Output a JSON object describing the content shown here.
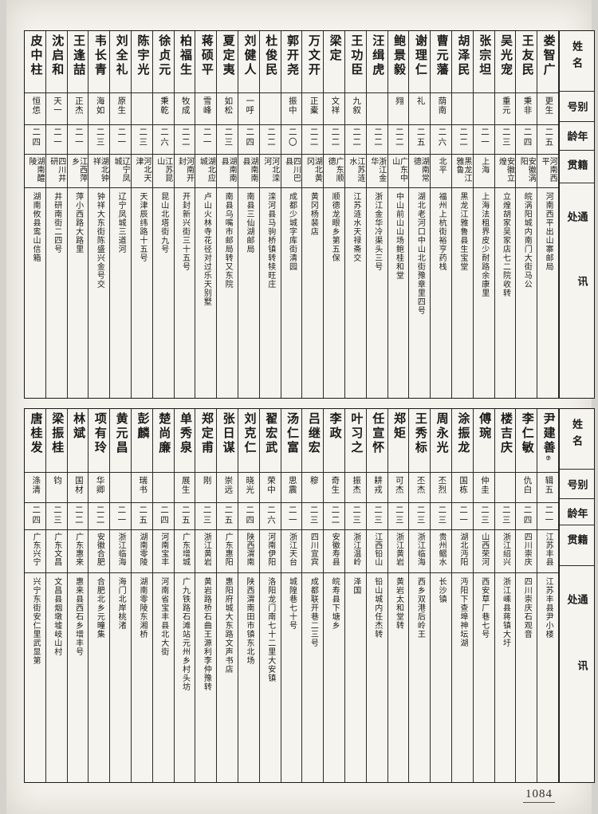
{
  "page": {
    "number": "1084"
  },
  "headers": {
    "name": "姓名",
    "alias": "别号",
    "age": "年龄",
    "native": "籍贯",
    "address": "通讯处"
  },
  "table_top": {
    "entries": [
      {
        "name": "娄智广",
        "alias": "更生",
        "age": "二五",
        "native": "河南西平",
        "address": "河南西平出山寨邮局"
      },
      {
        "name": "王友民",
        "alias": "秉非",
        "age": "二四",
        "native": "安徽涡阳",
        "address": "皖涡阳城内南门大街马公"
      },
      {
        "name": "吴光宠",
        "alias": "重元",
        "age": "二三",
        "native": "安徽立煌",
        "address": "立煌胡家吴家店七二院收转"
      },
      {
        "name": "张宗坦",
        "alias": "",
        "age": "二一",
        "native": "上海",
        "address": "上海法租界皮少耐路余康里"
      },
      {
        "name": "胡泽民",
        "alias": "",
        "age": "二二",
        "native": "黑龙江雅鲁",
        "address": "黑龙江雅鲁县生宝堂"
      },
      {
        "name": "曹元藩",
        "alias": "荫南",
        "age": "二六",
        "native": "北平",
        "address": "福州上杭街裕亨药栈"
      },
      {
        "name": "谢理仁",
        "alias": "礼",
        "age": "二五",
        "native": "湖南常德",
        "address": "湖北老河口中山北街豫章里四号"
      },
      {
        "name": "鲍景毅",
        "alias": "翙",
        "age": "二二",
        "native": "广东中山",
        "address": "中山前山山场鲍桂和堂"
      },
      {
        "name": "汪缉虎",
        "alias": "",
        "age": "二二",
        "native": "浙江金华",
        "address": "浙江金华冷渠头三号"
      },
      {
        "name": "王功臣",
        "alias": "九叙",
        "age": "二二",
        "native": "江苏涟水",
        "address": "江苏涟水天禄斋交"
      },
      {
        "name": "梁定",
        "alias": "文祥",
        "age": "二二",
        "native": "广东顺德",
        "address": "顺德龙眼乡第五保"
      },
      {
        "name": "万文开",
        "alias": "正橐",
        "age": "二二",
        "native": "湖北黄冈",
        "address": "黄冈杨裴店"
      },
      {
        "name": "郭开尧",
        "alias": "振中",
        "age": "二〇",
        "native": "四川巴县",
        "address": "成都少城字库街清园"
      },
      {
        "name": "杜俊民",
        "alias": "",
        "age": "二二",
        "native": "河北滦河",
        "address": "滦河县马驹桥镇转犊旺庄"
      },
      {
        "name": "刘健人",
        "alias": "一呼",
        "age": "二四",
        "native": "湖南南县",
        "address": "南县三仙湖邮局"
      },
      {
        "name": "夏定夷",
        "alias": "如松",
        "age": "二三",
        "native": "湖南南县",
        "address": "南县乌嘴市邮局转又东院"
      },
      {
        "name": "蒋硕平",
        "alias": "雪峰",
        "age": "二一",
        "native": "湖北应城",
        "address": "卢山火林寺花径对过乐天别墅"
      },
      {
        "name": "柏福生",
        "alias": "牧成",
        "age": "二二",
        "native": "河南开封",
        "address": "开封新兴街三十五号"
      },
      {
        "name": "徐贞元",
        "alias": "秉乾",
        "age": "二六",
        "native": "江苏昆山",
        "address": "昆山北塔街九号"
      },
      {
        "name": "陈宇光",
        "alias": "",
        "age": "二三",
        "native": "河北天津",
        "address": "天津辰纬路十五号"
      },
      {
        "name": "刘全礼",
        "alias": "原生",
        "age": "二一",
        "native": "辽宁凤城",
        "address": "辽宁凤城三道河"
      },
      {
        "name": "韦长青",
        "alias": "海如",
        "age": "二三",
        "native": "湖北钟祥",
        "address": "钟祥大东街陈盛兴金号交"
      },
      {
        "name": "王逢喆",
        "alias": "正杰",
        "age": "二一",
        "native": "江西萍乡",
        "address": "萍小西路大路里"
      },
      {
        "name": "沈启和",
        "alias": "天一",
        "age": "二一",
        "native": "四川井研",
        "address": "井研南街二四号"
      },
      {
        "name": "皮中柱",
        "alias": "恒怹",
        "age": "二四",
        "native": "湖南醴陵",
        "address": "湖南攸县鸾山信箱"
      }
    ]
  },
  "table_bottom": {
    "entries": [
      {
        "name": "尹建善",
        "note": "⑦",
        "alias": "辑五",
        "age": "二一",
        "native": "江苏丰县",
        "address": "江苏丰县尹小楼"
      },
      {
        "name": "李仁敏",
        "alias": "仇白",
        "age": "二四",
        "native": "四川崇庆",
        "address": "四川崇庆石观音"
      },
      {
        "name": "楼吉庆",
        "alias": "",
        "age": "二三",
        "native": "浙江绍兴",
        "address": "浙江嵊县蒋镇大圩"
      },
      {
        "name": "傅琬",
        "alias": "仲圭",
        "age": "二三",
        "native": "山西荣河",
        "address": "西安草厂巷七号"
      },
      {
        "name": "涂振龙",
        "alias": "国栋",
        "age": "二一",
        "native": "湖北沔阳",
        "address": "沔阳下查埠神坛湖"
      },
      {
        "name": "周永光",
        "alias": "丕烈",
        "age": "二三",
        "native": "贵州鳛水",
        "address": "长沙镇"
      },
      {
        "name": "王秀标",
        "alias": "丕杰",
        "age": "二三",
        "native": "浙江临海",
        "address": "西乡双港后岭王"
      },
      {
        "name": "郑矩",
        "alias": "可杰",
        "age": "二三",
        "native": "浙江黄岩",
        "address": "黄岩太和堂转"
      },
      {
        "name": "任宣怀",
        "alias": "耕戎",
        "age": "二三",
        "native": "江西铅山",
        "address": "铅山城内任杰转"
      },
      {
        "name": "叶习之",
        "alias": "振杰",
        "age": "二三",
        "native": "浙江温岭",
        "address": "泽国"
      },
      {
        "name": "李政",
        "alias": "奇生",
        "age": "二二",
        "native": "安徽寿县",
        "address": "皖寿县下塘乡"
      },
      {
        "name": "吕继宏",
        "alias": "穆",
        "age": "二三",
        "native": "四川宜宾",
        "address": "成都联开巷二三号"
      },
      {
        "name": "汤仁富",
        "alias": "思震",
        "age": "二一",
        "native": "浙江天台",
        "address": "城隍巷七十号"
      },
      {
        "name": "翟宏武",
        "alias": "荣中",
        "age": "二六",
        "native": "河南伊阳",
        "address": "洛阳龙门南七十二里大安镇"
      },
      {
        "name": "刘克仁",
        "alias": "晓光",
        "age": "二四",
        "native": "陕西渭南",
        "address": "陕西渭南田市镇东北场"
      },
      {
        "name": "张日谋",
        "alias": "崇远",
        "age": "二五",
        "native": "广东惠阳",
        "address": "惠阳府城大东路文声书店"
      },
      {
        "name": "郑定甫",
        "alias": "刚",
        "age": "二三",
        "native": "浙江黄岩",
        "address": "黄岩路桥石曲王源利李仲豫转"
      },
      {
        "name": "单秀泉",
        "alias": "展生",
        "age": "二五",
        "native": "广东增城",
        "address": "广九铁路石滩站元州乡村头坊"
      },
      {
        "name": "楚尚廉",
        "alias": "",
        "age": "二四",
        "native": "河南宝丰",
        "address": "河南省宝丰县北大街"
      },
      {
        "name": "彭麟",
        "alias": "瑞书",
        "age": "二五",
        "native": "湖南零陵",
        "address": "湖南零陵东湘桥"
      },
      {
        "name": "黄元昌",
        "alias": "",
        "age": "二一",
        "native": "浙江临海",
        "address": "海门北岸桃渚"
      },
      {
        "name": "项有玲",
        "alias": "华卿",
        "age": "二二",
        "native": "安徽合肥",
        "address": "合肥北乡元疃集"
      },
      {
        "name": "林斌",
        "alias": "国材",
        "age": "二二",
        "native": "广东惠来",
        "address": "惠来县西石乡增丰号"
      },
      {
        "name": "梁振桂",
        "alias": "钧",
        "age": "二三",
        "native": "广东文昌",
        "address": "文昌县烟墩墟岐山村"
      },
      {
        "name": "唐桂发",
        "alias": "涤清",
        "age": "二四",
        "native": "广东兴宁",
        "address": "兴宁东街安仁里武显第"
      }
    ]
  }
}
